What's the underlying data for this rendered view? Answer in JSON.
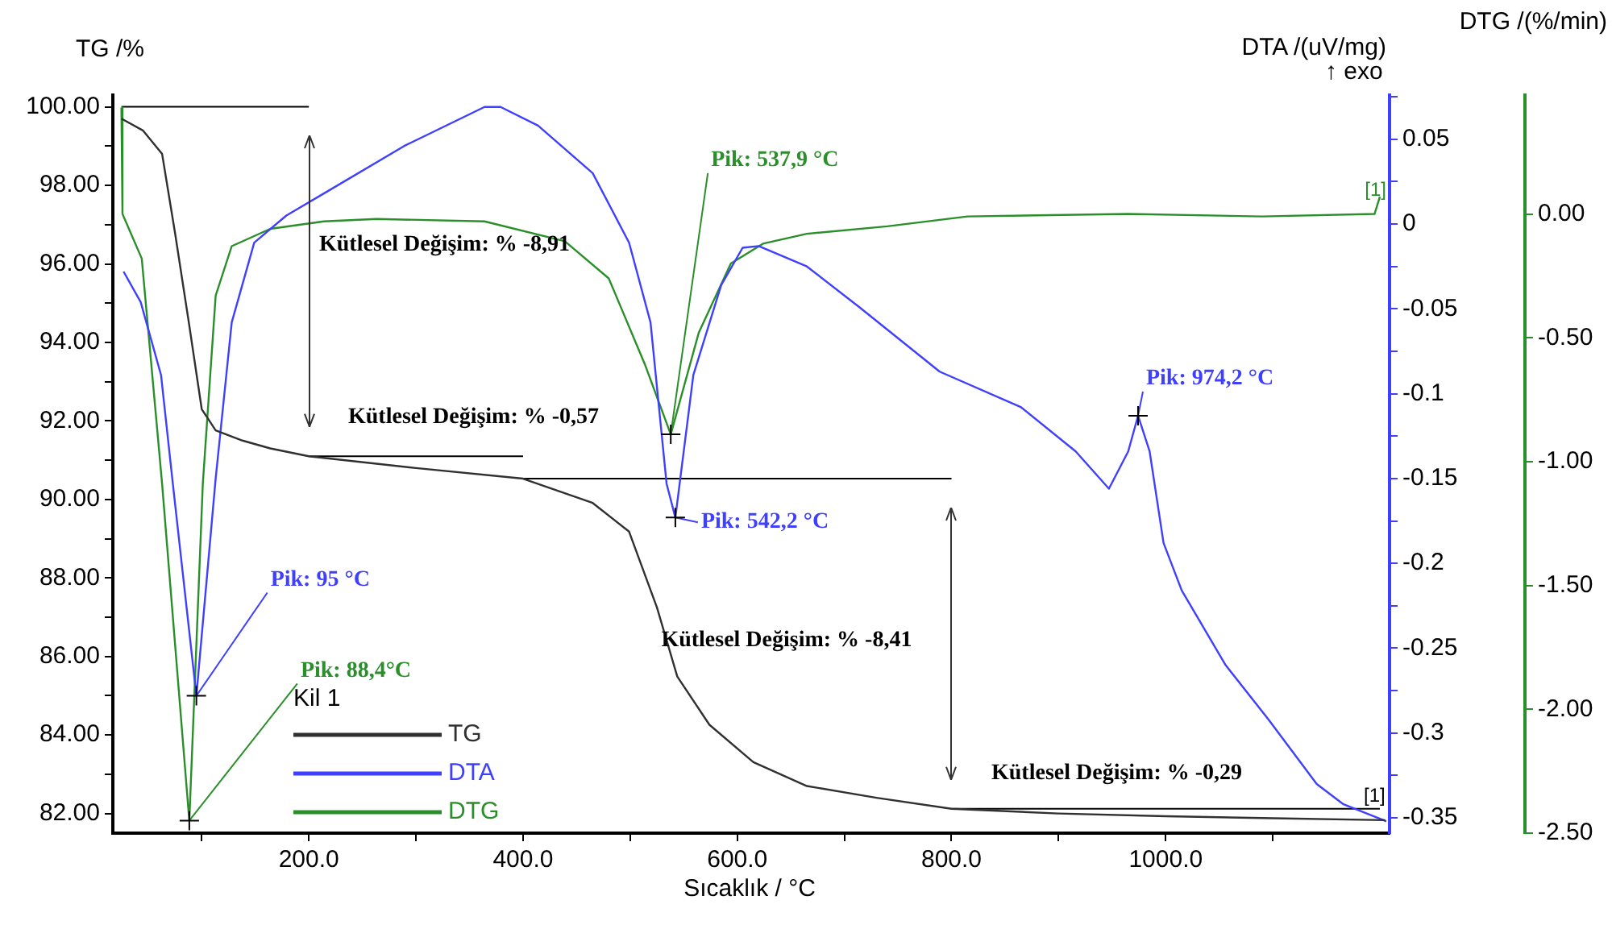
{
  "chart_data": {
    "type": "line",
    "marker": "none",
    "line_style": "solid",
    "legend": "bottom left",
    "legend_title": "Kil 1",
    "xlabel": "Sıcaklık / °C",
    "ylabel": "TG /%",
    "y2label": "DTA /(uV/mg)",
    "y3label": "DTG /(%/min)",
    "xlim": [
      17,
      1209
    ],
    "xticks": [
      {
        "value": 100,
        "label": null
      },
      {
        "value": 200,
        "label": "200.0"
      },
      {
        "value": 300,
        "label": null
      },
      {
        "value": 400,
        "label": "400.0"
      },
      {
        "value": 500,
        "label": null
      },
      {
        "value": 600,
        "label": "600.0"
      },
      {
        "value": 700,
        "label": null
      },
      {
        "value": 800,
        "label": "800.0"
      },
      {
        "value": 900,
        "label": null
      },
      {
        "value": 1000,
        "label": "1000.0"
      },
      {
        "value": 1100,
        "label": null
      }
    ],
    "ylim": [
      81.5,
      100.3
    ],
    "yticks": [
      {
        "value": 82,
        "label": "82.00"
      },
      {
        "value": 83,
        "label": null
      },
      {
        "value": 84,
        "label": "84.00"
      },
      {
        "value": 85,
        "label": null
      },
      {
        "value": 86,
        "label": "86.00"
      },
      {
        "value": 87,
        "label": null
      },
      {
        "value": 88,
        "label": "88.00"
      },
      {
        "value": 89,
        "label": null
      },
      {
        "value": 90,
        "label": "90.00"
      },
      {
        "value": 91,
        "label": null
      },
      {
        "value": 92,
        "label": "92.00"
      },
      {
        "value": 93,
        "label": null
      },
      {
        "value": 94,
        "label": "94.00"
      },
      {
        "value": 95,
        "label": null
      },
      {
        "value": 96,
        "label": "96.00"
      },
      {
        "value": 97,
        "label": null
      },
      {
        "value": 98,
        "label": "98.00"
      },
      {
        "value": 99,
        "label": null
      },
      {
        "value": 100,
        "label": "100.00"
      }
    ],
    "y2lim": [
      -0.359,
      0.076
    ],
    "y2ticks": [
      -0.35,
      {
        "value": -0.325,
        "label": null
      },
      -0.3,
      {
        "value": -0.275,
        "label": null
      },
      -0.25,
      {
        "value": -0.225,
        "label": null
      },
      -0.2,
      {
        "value": -0.175,
        "label": null
      },
      -0.15,
      {
        "value": -0.125,
        "label": null
      },
      -0.1,
      {
        "value": -0.075,
        "label": null
      },
      -0.05,
      {
        "value": -0.025,
        "label": null
      },
      0,
      {
        "value": 0.025,
        "label": null
      },
      0.05,
      {
        "value": 0.075,
        "label": null
      }
    ],
    "y3lim": [
      -2.5,
      0.48
    ],
    "y3ticks": [
      {
        "value": -2.5,
        "label": "-2.50"
      },
      {
        "value": -2,
        "label": "-2.00"
      },
      {
        "value": -1.5,
        "label": "-1.50"
      },
      {
        "value": -1,
        "label": "-1.00"
      },
      {
        "value": -0.5,
        "label": "-0.50"
      },
      {
        "value": 0,
        "label": "0.00"
      }
    ],
    "series": [
      {
        "name": "TG",
        "color": "#303030",
        "axis": "y",
        "x": [
          25,
          45,
          63,
          75,
          88,
          100,
          113,
          138,
          164,
          200,
          300,
          400,
          465,
          499,
          525,
          544,
          574,
          615,
          665,
          730,
          800,
          900,
          1000,
          1100,
          1205
        ],
        "values": [
          99.7,
          99.4,
          98.8,
          96.8,
          94.5,
          92.3,
          91.76,
          91.5,
          91.3,
          91.1,
          90.8,
          90.53,
          89.91,
          89.18,
          87.25,
          85.49,
          84.26,
          83.31,
          82.7,
          82.4,
          82.12,
          82.0,
          81.93,
          81.88,
          81.83
        ]
      },
      {
        "name": "DTA",
        "color": "#3f3fff",
        "axis": "y2",
        "x": [
          27,
          43,
          62,
          73,
          95,
          113,
          128,
          149,
          179,
          214,
          289,
          364,
          379,
          414,
          465,
          499,
          519,
          534,
          542.2,
          559,
          585,
          605,
          620,
          665,
          714,
          789,
          865,
          916,
          947,
          965,
          974.2,
          985,
          998,
          1015,
          1056,
          1096,
          1141,
          1166,
          1206
        ],
        "values": [
          -0.028,
          -0.046,
          -0.089,
          -0.153,
          -0.278,
          -0.15,
          -0.058,
          -0.011,
          0.005,
          0.018,
          0.046,
          0.069,
          0.069,
          0.058,
          0.03,
          -0.011,
          -0.058,
          -0.153,
          -0.173,
          -0.089,
          -0.036,
          -0.014,
          -0.013,
          -0.025,
          -0.049,
          -0.087,
          -0.108,
          -0.134,
          -0.156,
          -0.134,
          -0.113,
          -0.134,
          -0.188,
          -0.216,
          -0.26,
          -0.292,
          -0.33,
          -0.342,
          -0.352
        ]
      },
      {
        "name": "DTG",
        "color": "#2a8f2a",
        "axis": "y3",
        "x": [
          25,
          26,
          44,
          63,
          88.4,
          101,
          113,
          128,
          164,
          214,
          263,
          364,
          439,
          480,
          514,
          537.9,
          564,
          594,
          624,
          665,
          740,
          815,
          965,
          1090,
          1195,
          1200
        ],
        "values": [
          0.43,
          0.0,
          -0.18,
          -1.09,
          -2.45,
          -1.09,
          -0.33,
          -0.13,
          -0.06,
          -0.03,
          -0.02,
          -0.03,
          -0.11,
          -0.26,
          -0.61,
          -0.89,
          -0.48,
          -0.2,
          -0.12,
          -0.08,
          -0.05,
          -0.01,
          0.0,
          -0.01,
          0.0,
          0.07
        ]
      },
      {
        "type": "line",
        "color": "#000000",
        "axis": "y",
        "x": [
          25,
          200
        ],
        "values": [
          100,
          100
        ]
      },
      {
        "type": "line",
        "color": "#000000",
        "axis": "y",
        "x": [
          200,
          400
        ],
        "values": [
          91.1,
          91.1
        ]
      },
      {
        "type": "line",
        "color": "#000000",
        "axis": "y",
        "x": [
          400,
          800
        ],
        "values": [
          90.53,
          90.53
        ]
      },
      {
        "type": "line",
        "color": "#000000",
        "axis": "y",
        "x": [
          800,
          1200
        ],
        "values": [
          82.12,
          82.12
        ]
      }
    ],
    "annotations": [
      "Kütlesel Değişim: % -8,91",
      "Kütlesel Değişim: % -0,57",
      {
        "text": "Kütlesel Değişim: % -8,41",
        "x": 529,
        "y": 86.4
      },
      "Kütlesel Değişim: % -0,29",
      {
        "text": "Pik: 537,9 °C",
        "x": 537.9,
        "y": 91.66
      },
      {
        "text": "Pik: 542,2 °C",
        "x": 542.2,
        "y": 89.54
      },
      {
        "text": "Pik: 95 °C",
        "x": 95,
        "y": 85.0
      },
      {
        "text": "Pik: 88,4°C",
        "x": 88.4,
        "y": 81.82
      },
      {
        "text": "Pik: 974,2 °C",
        "x": 974.2,
        "y": 92.13
      },
      {
        "text": "[1]",
        "x": 1200,
        "y": 97.88
      },
      "[1]",
      "↑ exo"
    ]
  }
}
